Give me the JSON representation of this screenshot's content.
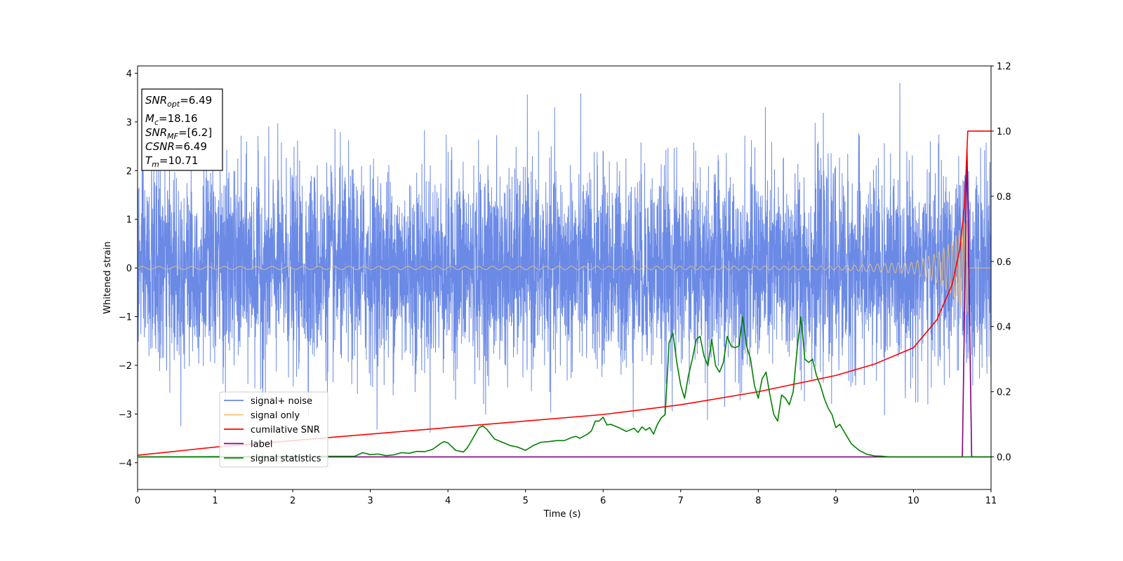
{
  "chart_data": {
    "type": "line",
    "title": "",
    "xlabel": "Time (s)",
    "ylabel": "Whitened strain",
    "xlim": [
      0,
      11
    ],
    "ylim_left": [
      -4.55,
      4.15
    ],
    "ylim_right": [
      -0.1,
      1.2
    ],
    "x_ticks": [
      "0",
      "1",
      "2",
      "3",
      "4",
      "5",
      "6",
      "7",
      "8",
      "9",
      "10",
      "11"
    ],
    "y_ticks_left": [
      "−4",
      "−3",
      "−2",
      "−1",
      "0",
      "1",
      "2",
      "3",
      "4"
    ],
    "y_ticks_right": [
      "0.0",
      "0.2",
      "0.4",
      "0.6",
      "0.8",
      "1.0",
      "1.2"
    ],
    "grid": false,
    "legend_position": "lower-left",
    "series": [
      {
        "name": "signal+ noise",
        "axis": "left",
        "color": "#6b8ae6",
        "style": "noise band, approx. ±2.3 strain with peaks to ±3.8"
      },
      {
        "name": "signal only",
        "axis": "left",
        "color": "#f5c46e",
        "style": "chirp oscillation growing toward merger",
        "amplitude_points": [
          [
            0,
            0.03
          ],
          [
            9.0,
            0.04
          ],
          [
            10.0,
            0.12
          ],
          [
            10.3,
            0.3
          ],
          [
            10.5,
            0.55
          ],
          [
            10.62,
            0.85
          ],
          [
            10.7,
            1.0
          ]
        ]
      },
      {
        "name": "cumilative SNR",
        "axis": "right",
        "color": "#ff0000",
        "x": [
          0,
          1,
          2,
          3,
          4,
          5,
          6,
          7,
          8,
          9,
          9.5,
          10.0,
          10.3,
          10.5,
          10.6,
          10.66,
          10.7,
          10.72,
          11
        ],
        "y": [
          0.005,
          0.03,
          0.05,
          0.07,
          0.09,
          0.11,
          0.13,
          0.16,
          0.2,
          0.25,
          0.285,
          0.335,
          0.42,
          0.53,
          0.64,
          0.78,
          1.0,
          1.0,
          1.0
        ]
      },
      {
        "name": "label",
        "axis": "right",
        "color": "#800080",
        "x": [
          0,
          10.63,
          10.69,
          10.75,
          11
        ],
        "y": [
          0,
          0,
          0.95,
          0,
          0
        ]
      },
      {
        "name": "signal statistics",
        "axis": "right",
        "color": "#008000",
        "x": [
          0,
          2.8,
          2.9,
          3.0,
          3.1,
          3.2,
          3.3,
          3.4,
          3.5,
          3.6,
          3.7,
          3.8,
          3.9,
          3.95,
          4.0,
          4.1,
          4.2,
          4.25,
          4.3,
          4.4,
          4.45,
          4.5,
          4.6,
          4.7,
          4.8,
          4.9,
          5.0,
          5.1,
          5.2,
          5.3,
          5.4,
          5.5,
          5.6,
          5.65,
          5.7,
          5.8,
          5.85,
          5.9,
          5.95,
          6.0,
          6.05,
          6.1,
          6.2,
          6.3,
          6.4,
          6.45,
          6.5,
          6.55,
          6.6,
          6.65,
          6.7,
          6.75,
          6.8,
          6.85,
          6.9,
          6.95,
          7.0,
          7.05,
          7.1,
          7.15,
          7.2,
          7.25,
          7.3,
          7.35,
          7.4,
          7.45,
          7.5,
          7.55,
          7.6,
          7.65,
          7.7,
          7.75,
          7.8,
          7.85,
          7.9,
          7.95,
          8.0,
          8.05,
          8.1,
          8.15,
          8.2,
          8.25,
          8.3,
          8.35,
          8.4,
          8.45,
          8.5,
          8.55,
          8.6,
          8.65,
          8.7,
          8.75,
          8.8,
          8.85,
          8.9,
          8.95,
          9.0,
          9.05,
          9.1,
          9.2,
          9.3,
          9.4,
          9.5,
          9.6,
          9.7,
          9.8,
          10.0,
          10.2,
          11.0
        ],
        "y": [
          0,
          0.002,
          0.013,
          0.007,
          0.009,
          0.004,
          0.006,
          0.013,
          0.011,
          0.017,
          0.016,
          0.023,
          0.04,
          0.047,
          0.043,
          0.02,
          0.015,
          0.028,
          0.048,
          0.09,
          0.095,
          0.085,
          0.055,
          0.045,
          0.035,
          0.03,
          0.02,
          0.035,
          0.045,
          0.047,
          0.05,
          0.05,
          0.06,
          0.063,
          0.057,
          0.07,
          0.08,
          0.11,
          0.11,
          0.122,
          0.098,
          0.1,
          0.09,
          0.078,
          0.088,
          0.075,
          0.092,
          0.082,
          0.09,
          0.07,
          0.1,
          0.12,
          0.13,
          0.35,
          0.38,
          0.29,
          0.22,
          0.18,
          0.25,
          0.3,
          0.36,
          0.37,
          0.31,
          0.28,
          0.36,
          0.28,
          0.26,
          0.29,
          0.37,
          0.34,
          0.335,
          0.34,
          0.43,
          0.34,
          0.3,
          0.22,
          0.18,
          0.24,
          0.26,
          0.19,
          0.13,
          0.11,
          0.19,
          0.18,
          0.16,
          0.2,
          0.33,
          0.43,
          0.3,
          0.29,
          0.3,
          0.25,
          0.22,
          0.18,
          0.15,
          0.13,
          0.09,
          0.1,
          0.08,
          0.04,
          0.02,
          0.008,
          0.003,
          0.002,
          0,
          0,
          0,
          0,
          0
        ]
      }
    ],
    "annotation": {
      "lines": [
        {
          "base": "SNR",
          "sub": "opt",
          "value": "=6.49"
        },
        {
          "base": "M",
          "sub": "c",
          "value": "=18.16"
        },
        {
          "base": "SNR",
          "sub": "MF",
          "value": "=[6.2]"
        },
        {
          "base": "CSNR",
          "sub": "",
          "value": "=6.49"
        },
        {
          "base": "T",
          "sub": "m",
          "value": "=10.71"
        }
      ]
    }
  }
}
